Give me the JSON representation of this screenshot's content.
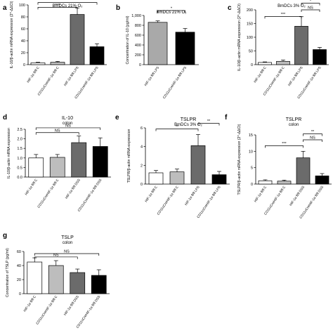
{
  "chart_data": [
    {
      "panel": "a",
      "type": "bar",
      "title": "",
      "subtitle": "BmDCs 21% O₂",
      "ylabel": "IL-10/β-actin mRNA expression (2^-ΔΔCt)",
      "ylim": [
        0,
        100
      ],
      "yticks": [
        "0",
        "20",
        "40",
        "60",
        "80",
        "100"
      ],
      "categories": [
        "HIF-1α fl/fl C",
        "CD11cCreHIF-1α fl/fl C",
        "HIF-1α fl/fl LPS",
        "CD11cCreHIF-1α fl/fl LPS"
      ],
      "values": [
        3,
        4,
        84,
        30
      ],
      "errors": [
        1,
        1.5,
        11,
        5
      ],
      "fills": [
        "#ffffff",
        "#bdbdbd",
        "#6b6b6b",
        "#000000"
      ],
      "significance": [
        "****",
        "****",
        "****"
      ]
    },
    {
      "panel": "b",
      "type": "bar",
      "title": "",
      "subtitle": "BmDCs 21% O₂",
      "ylabel": "Concentration of IL-10 (pg/ml)",
      "ylim": [
        0,
        1000
      ],
      "yticks": [
        "0",
        "200",
        "400",
        "600",
        "800",
        "1,000"
      ],
      "categories": [
        "HIF-1α fl/fl LPS",
        "CD11cCreHIF-1α fl/fl LPS"
      ],
      "values": [
        860,
        660
      ],
      "errors": [
        30,
        75
      ],
      "fills": [
        "#a9a9a9",
        "#000000"
      ],
      "significance": [
        "*"
      ]
    },
    {
      "panel": "c",
      "type": "bar",
      "title": "",
      "subtitle": "BmDCs 3% O₂",
      "ylabel": "IL-10/β-actin mRNA expression (2^-ΔΔCt)",
      "ylim": [
        0,
        200
      ],
      "yticks": [
        "0",
        "50",
        "100",
        "150",
        "200"
      ],
      "categories": [
        "HIF-1α fl/fl C",
        "CD11cCreHIF-1α fl/fl C",
        "HIF-1α fl/fl LPS",
        "CD11cCreHIF-1α fl/fl LPS"
      ],
      "values": [
        8,
        12,
        140,
        55
      ],
      "errors": [
        2,
        5,
        35,
        8
      ],
      "fills": [
        "#ffffff",
        "#bdbdbd",
        "#6b6b6b",
        "#000000"
      ],
      "significance": [
        "***",
        "NS",
        "*"
      ]
    },
    {
      "panel": "d",
      "type": "bar",
      "title": "IL-10",
      "subtitle": "colon",
      "ylabel": "IL-10/β-actin mRNA expression",
      "ylim": [
        0,
        2.5
      ],
      "yticks": [
        "0.0",
        "0.5",
        "1.0",
        "1.5",
        "2.0",
        "2.5"
      ],
      "categories": [
        "HIF-1α fl/fl C",
        "CD11cCreHIF-1α fl/fl C",
        "HIF-1α fl/fl DSS",
        "CD11cCreHIF-1α fl/fl DSS"
      ],
      "values": [
        1.0,
        1.03,
        1.8,
        1.6
      ],
      "errors": [
        0.18,
        0.15,
        0.35,
        0.45
      ],
      "fills": [
        "#ffffff",
        "#bdbdbd",
        "#6b6b6b",
        "#000000"
      ],
      "significance": [
        "NS",
        "NS"
      ]
    },
    {
      "panel": "e",
      "type": "bar",
      "title": "TSLPR",
      "subtitle": "BmDCs 3% O₂",
      "ylabel": "TSLPR/β-actin mRNA expression",
      "ylim": [
        0,
        6
      ],
      "yticks": [
        "0",
        "2",
        "4",
        "6"
      ],
      "categories": [
        "HIF-1α fl/fl C",
        "CD11cCreHIF-1α fl/fl C",
        "HIF-1α fl/fl LPS",
        "CD11cCreHIF-1α fl/fl LPS"
      ],
      "values": [
        1.2,
        1.3,
        4.1,
        1.0
      ],
      "errors": [
        0.25,
        0.3,
        1.2,
        0.35
      ],
      "fills": [
        "#ffffff",
        "#bdbdbd",
        "#6b6b6b",
        "#000000"
      ],
      "significance": [
        "**",
        "**"
      ]
    },
    {
      "panel": "f",
      "type": "bar",
      "title": "TSLPR",
      "subtitle": "colon",
      "ylabel": "TSLPR/β-actin mRNA expression (2^-ΔΔCt)",
      "ylim": [
        0,
        15
      ],
      "yticks": [
        "0",
        "5",
        "10",
        "15"
      ],
      "categories": [
        "HIF-1α fl/fl C",
        "CD11cCreHIF-1α fl/fl C",
        "HIF-1α fl/fl DSS",
        "CD11cCreHIF-1α fl/fl DSS"
      ],
      "values": [
        1.0,
        0.9,
        8.0,
        2.5
      ],
      "errors": [
        0.3,
        0.3,
        2.0,
        0.7
      ],
      "fills": [
        "#ffffff",
        "#bdbdbd",
        "#6b6b6b",
        "#000000"
      ],
      "significance": [
        "***",
        "NS",
        "**"
      ]
    },
    {
      "panel": "g",
      "type": "bar",
      "title": "TSLP",
      "subtitle": "colon",
      "ylabel": "Concentration of TSLP (pg/ml)",
      "ylim": [
        0,
        60
      ],
      "yticks": [
        "0",
        "20",
        "40",
        "60"
      ],
      "categories": [
        "HIF-1α fl/fl C",
        "CD11cCreHIF-1α fl/fl C",
        "HIF-1α fl/fl DSS",
        "CD11cCreHIF-1α fl/fl DSS"
      ],
      "values": [
        45,
        40,
        30,
        26
      ],
      "errors": [
        6,
        7,
        5,
        8
      ],
      "fills": [
        "#ffffff",
        "#bdbdbd",
        "#6b6b6b",
        "#000000"
      ],
      "significance": [
        "NS",
        "NS"
      ]
    }
  ]
}
